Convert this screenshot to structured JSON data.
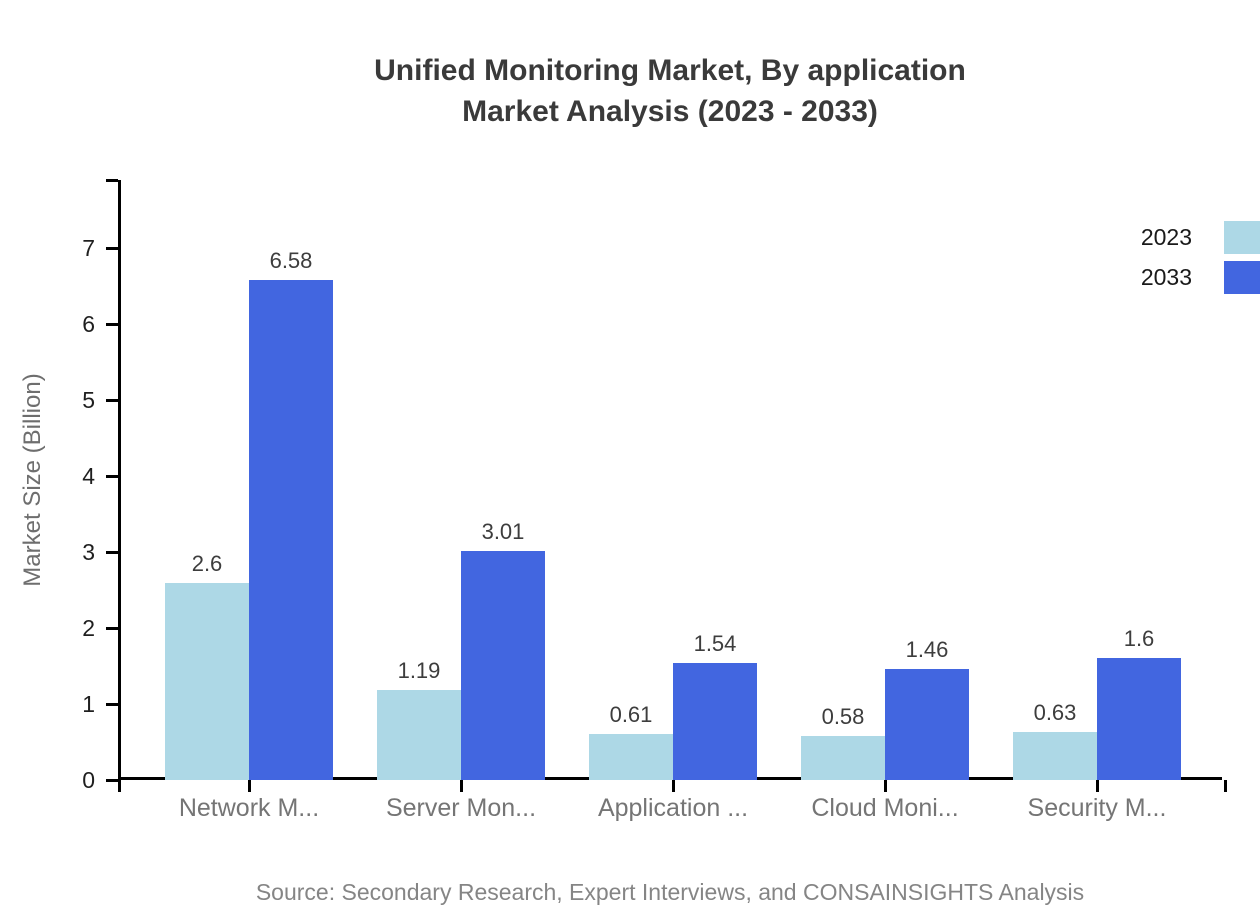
{
  "chart_data": {
    "type": "bar",
    "title": "Unified Monitoring Market, By application\nMarket Analysis (2023 - 2033)",
    "ylabel": "Market Size (Billion)",
    "xlabel": "",
    "categories": [
      "Network M...",
      "Server Mon...",
      "Application ...",
      "Cloud Moni...",
      "Security M..."
    ],
    "series": [
      {
        "name": "2023",
        "color": "#ADD8E6",
        "values": [
          2.6,
          1.19,
          0.61,
          0.58,
          0.63
        ],
        "labels": [
          "2.6",
          "1.19",
          "0.61",
          "0.58",
          "0.63"
        ]
      },
      {
        "name": "2033",
        "color": "#4266E0",
        "values": [
          6.58,
          3.01,
          1.54,
          1.46,
          1.6
        ],
        "labels": [
          "6.58",
          "3.01",
          "1.54",
          "1.46",
          "1.6"
        ]
      }
    ],
    "yticks": [
      0,
      1,
      2,
      3,
      4,
      5,
      6,
      7
    ],
    "ylim": [
      0,
      7.9
    ],
    "grid": false,
    "legend_position": "top-right",
    "value_labels": true,
    "source": "Source: Secondary Research, Expert Interviews, and CONSAINSIGHTS Analysis"
  },
  "colors": {
    "series_2023": "#ADD8E6",
    "series_2033": "#4266E0",
    "axis": "#000000",
    "title_text": "#3A3A3A",
    "y_tick_text": "#1F1F1F",
    "x_category_text": "#757575",
    "value_label_text": "#3D3D3D",
    "axis_title_text": "#6E6E6E",
    "legend_text": "#1A1A1A",
    "source_text": "#858585",
    "background": "#FFFFFF"
  }
}
